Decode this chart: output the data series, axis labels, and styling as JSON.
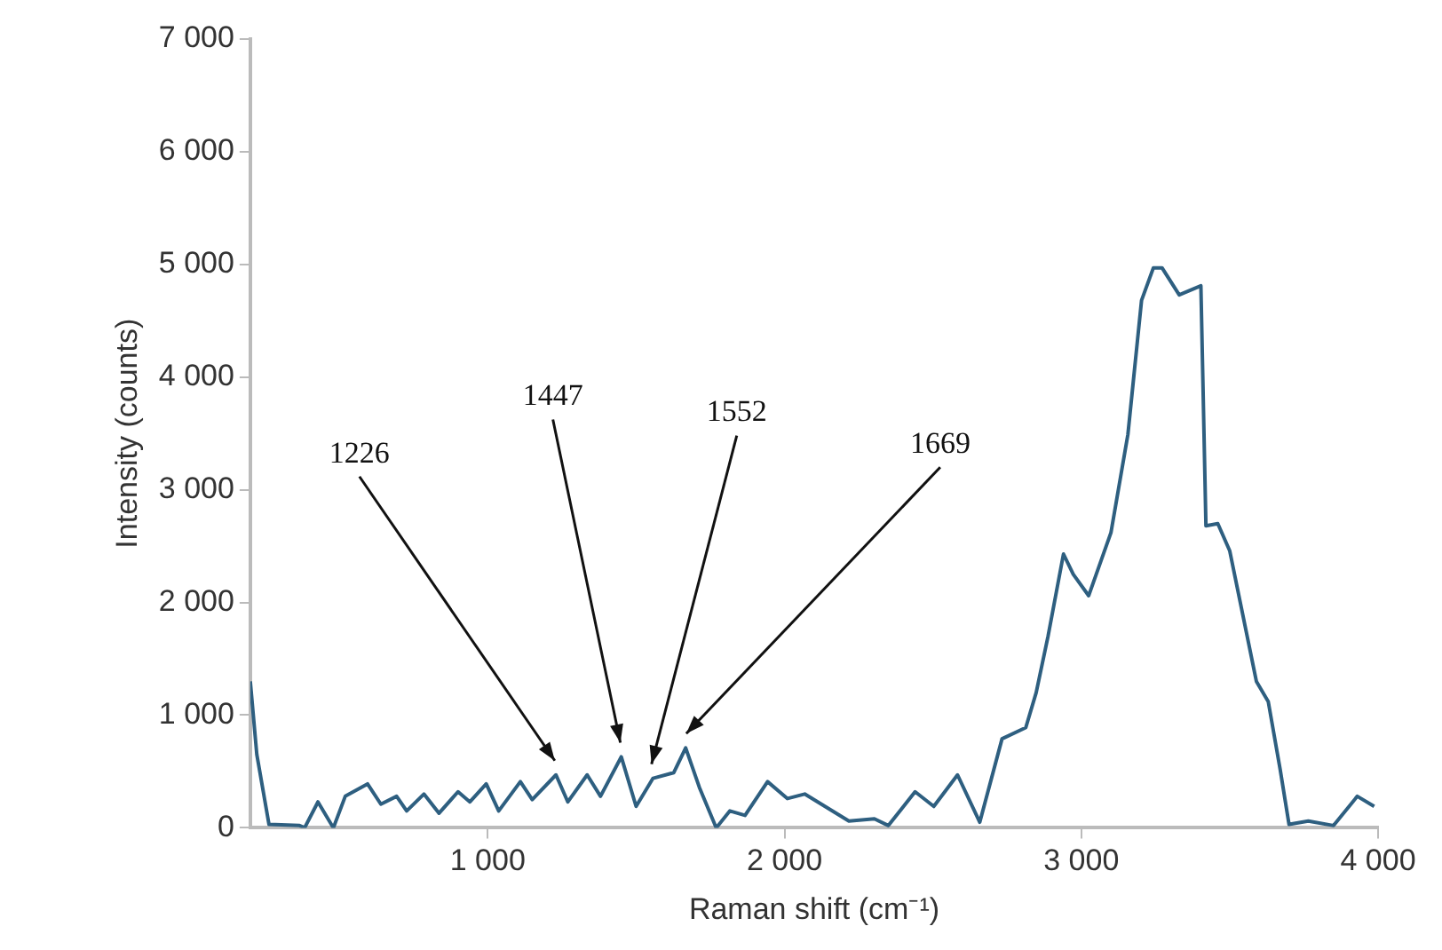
{
  "chart_data": {
    "type": "line",
    "xlabel": "Raman shift (cm⁻¹)",
    "ylabel": "Intensity (counts)",
    "xlim": [
      200,
      4000
    ],
    "xticks": [
      {
        "value": 1000,
        "label": "1 000"
      },
      {
        "value": 2000,
        "label": "2 000"
      },
      {
        "value": 3000,
        "label": "3 000"
      },
      {
        "value": 4000,
        "label": "4 000"
      }
    ],
    "ylim": [
      0,
      7000
    ],
    "yticks": [
      {
        "value": 0,
        "label": "0"
      },
      {
        "value": 1000,
        "label": "1 000"
      },
      {
        "value": 2000,
        "label": "2 000"
      },
      {
        "value": 3000,
        "label": "3 000"
      },
      {
        "value": 4000,
        "label": "4 000"
      },
      {
        "value": 5000,
        "label": "5 000"
      },
      {
        "value": 6000,
        "label": "6 000"
      },
      {
        "value": 7000,
        "label": "7 000"
      }
    ],
    "grid": false,
    "legend": false,
    "marker": "none",
    "line_style": "solid",
    "series": [
      {
        "color": "#2e5f80",
        "x": [
          200,
          222,
          263,
          366,
          383,
          428,
          480,
          520,
          595,
          640,
          693,
          727,
          785,
          836,
          900,
          940,
          995,
          1037,
          1110,
          1150,
          1230,
          1270,
          1335,
          1380,
          1450,
          1500,
          1557,
          1627,
          1667,
          1713,
          1770,
          1816,
          1867,
          1943,
          2010,
          2068,
          2217,
          2303,
          2350,
          2440,
          2503,
          2583,
          2658,
          2733,
          2813,
          2848,
          2888,
          2940,
          2973,
          3025,
          3100,
          3157,
          3203,
          3243,
          3272,
          3330,
          3403,
          3420,
          3460,
          3500,
          3590,
          3630,
          3670,
          3700,
          3765,
          3850,
          3930,
          3987
        ],
        "values": [
          1300,
          650,
          30,
          20,
          0,
          230,
          0,
          280,
          390,
          210,
          280,
          150,
          300,
          130,
          320,
          230,
          390,
          150,
          410,
          250,
          470,
          230,
          470,
          280,
          630,
          190,
          440,
          490,
          710,
          360,
          0,
          150,
          110,
          410,
          260,
          300,
          60,
          80,
          20,
          320,
          190,
          470,
          50,
          790,
          890,
          1200,
          1700,
          2430,
          2250,
          2060,
          2620,
          3490,
          4680,
          4970,
          4970,
          4730,
          4810,
          2680,
          2700,
          2460,
          1300,
          1120,
          520,
          30,
          60,
          20,
          280,
          190
        ]
      }
    ],
    "annotations": [
      {
        "text": "1226",
        "x": 1226,
        "y": 470
      },
      {
        "text": "1447",
        "x": 1447,
        "y": 630
      },
      {
        "text": "1552",
        "x": 1552,
        "y": 440
      },
      {
        "text": "1669",
        "x": 1669,
        "y": 710
      }
    ]
  }
}
